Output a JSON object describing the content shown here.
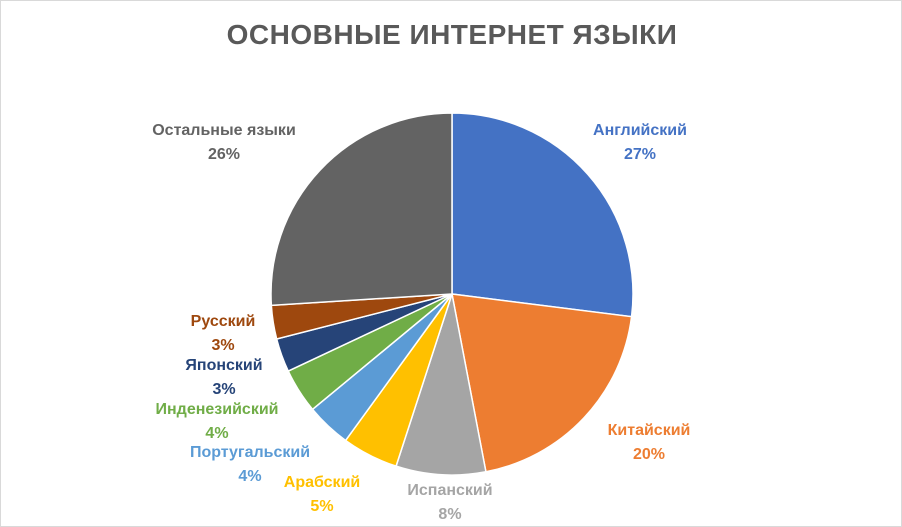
{
  "chart_data": {
    "type": "pie",
    "title": "ОСНОВНЫЕ ИНТЕРНЕТ ЯЗЫКИ",
    "slices": [
      {
        "label": "Английский",
        "value": 27,
        "value_label": "27%",
        "color": "#4472c4",
        "label_color": "#4472c4"
      },
      {
        "label": "Китайский",
        "value": 20,
        "value_label": "20%",
        "color": "#ed7d31",
        "label_color": "#ed7d31"
      },
      {
        "label": "Испанский",
        "value": 8,
        "value_label": "8%",
        "color": "#a5a5a5",
        "label_color": "#a5a5a5"
      },
      {
        "label": "Арабский",
        "value": 5,
        "value_label": "5%",
        "color": "#ffc000",
        "label_color": "#ffc000"
      },
      {
        "label": "Португальский",
        "value": 4,
        "value_label": "4%",
        "color": "#5b9bd5",
        "label_color": "#5b9bd5"
      },
      {
        "label": "Инденезийский",
        "value": 4,
        "value_label": "4%",
        "color": "#70ad47",
        "label_color": "#70ad47"
      },
      {
        "label": "Японский",
        "value": 3,
        "value_label": "3%",
        "color": "#264478",
        "label_color": "#264478"
      },
      {
        "label": "Русский",
        "value": 3,
        "value_label": "3%",
        "color": "#9e480e",
        "label_color": "#9e480e"
      },
      {
        "label": "Остальные языки",
        "value": 26,
        "value_label": "26%",
        "color": "#636363",
        "label_color": "#636363"
      }
    ]
  }
}
